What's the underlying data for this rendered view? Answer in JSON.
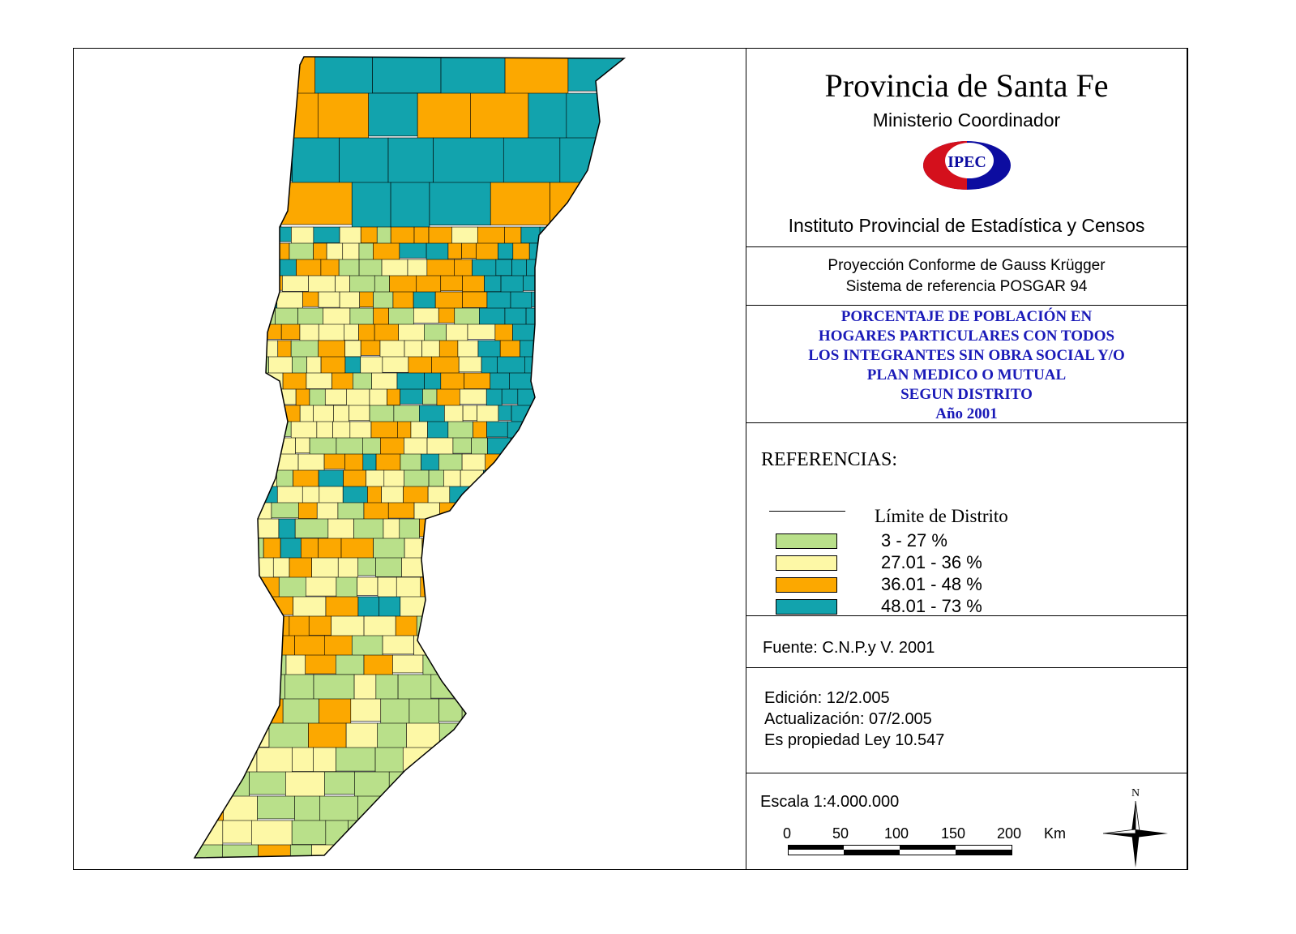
{
  "header": {
    "title": "Provincia de Santa Fe",
    "subtitle": "Ministerio Coordinador",
    "logo_text": "IPEC",
    "institute": "Instituto Provincial de Estadística y Censos"
  },
  "projection": {
    "line1": "Proyección Conforme de Gauss Krügger",
    "line2": "Sistema de referencia POSGAR 94"
  },
  "theme": {
    "lines": [
      "PORCENTAJE DE POBLACIÓN EN",
      "HOGARES PARTICULARES CON TODOS",
      "LOS INTEGRANTES SIN OBRA SOCIAL Y/O",
      "PLAN MEDICO O MUTUAL",
      "SEGUN DISTRITO",
      "Año 2001"
    ]
  },
  "legend": {
    "title": "REFERENCIAS:",
    "boundary_label": "Límite de Distrito",
    "classes": [
      {
        "label": "3 - 27 %",
        "color": "#b9e08a"
      },
      {
        "label": "27.01 - 36 %",
        "color": "#fdf8a6"
      },
      {
        "label": "36.01 - 48 %",
        "color": "#fca800"
      },
      {
        "label": "48.01 - 73 %",
        "color": "#12a3ad"
      }
    ]
  },
  "source": "Fuente:  C.N.P.y V. 2001",
  "edition": {
    "edicion": "Edición:  12/2.005",
    "actualizacion": "Actualización:  07/2.005",
    "propiedad": "Es propiedad Ley 10.547"
  },
  "scale": {
    "label": "Escala 1:4.000.000",
    "ticks": [
      "0",
      "50",
      "100",
      "150",
      "200"
    ],
    "unit": "Km"
  },
  "north": "N"
}
